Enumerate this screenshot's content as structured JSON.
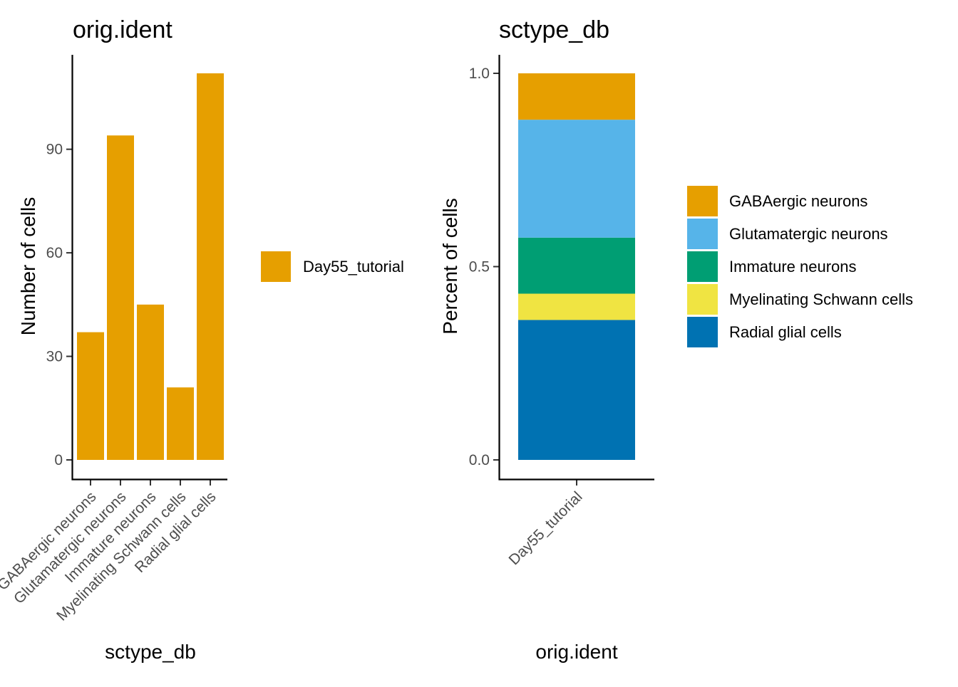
{
  "chart_data": [
    {
      "type": "bar",
      "title": "orig.ident",
      "xlabel": "sctype_db",
      "ylabel": "Number of cells",
      "categories": [
        "GABAergic neurons",
        "Glutamatergic neurons",
        "Immature neurons",
        "Myelinating Schwann cells",
        "Radial glial cells"
      ],
      "series": [
        {
          "name": "Day55_tutorial",
          "values": [
            37,
            94,
            45,
            21,
            112
          ],
          "color": "#E69F00"
        }
      ],
      "ylim": [
        0,
        112
      ],
      "yticks": [
        0,
        30,
        60,
        90
      ],
      "grid": false,
      "legend_position": "right"
    },
    {
      "type": "bar",
      "stacked": true,
      "title": "sctype_db",
      "xlabel": "orig.ident",
      "ylabel": "Percent of cells",
      "categories": [
        "Day55_tutorial"
      ],
      "series": [
        {
          "name": "GABAergic neurons",
          "values": [
            0.12
          ],
          "color": "#E69F00"
        },
        {
          "name": "Glutamatergic neurons",
          "values": [
            0.305
          ],
          "color": "#56B4E9"
        },
        {
          "name": "Immature neurons",
          "values": [
            0.145
          ],
          "color": "#009E73"
        },
        {
          "name": "Myelinating Schwann cells",
          "values": [
            0.068
          ],
          "color": "#F0E442"
        },
        {
          "name": "Radial glial cells",
          "values": [
            0.362
          ],
          "color": "#0072B2"
        }
      ],
      "ylim": [
        0,
        1
      ],
      "yticks": [
        "0.0",
        "0.5",
        "1.0"
      ],
      "grid": false,
      "legend_position": "right"
    }
  ]
}
